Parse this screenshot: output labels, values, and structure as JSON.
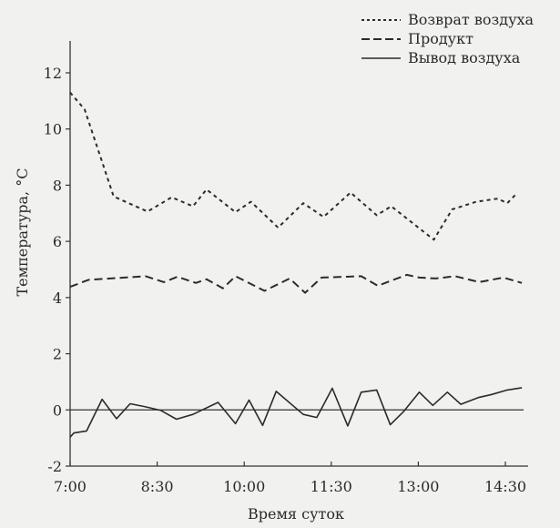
{
  "chart_data": {
    "type": "line",
    "title": "",
    "xlabel": "Время суток",
    "ylabel": "Температура, °C",
    "x_unit": "minutes since 7:00",
    "xlim": [
      0,
      467
    ],
    "ylim": [
      -2,
      12
    ],
    "y_ticks": [
      -2,
      0,
      2,
      4,
      6,
      8,
      10,
      12
    ],
    "x_ticks": [
      {
        "minutes": 0,
        "label": "7:00"
      },
      {
        "minutes": 90,
        "label": "8:30"
      },
      {
        "minutes": 180,
        "label": "10:00"
      },
      {
        "minutes": 270,
        "label": "11:30"
      },
      {
        "minutes": 360,
        "label": "13:00"
      },
      {
        "minutes": 450,
        "label": "14:30"
      }
    ],
    "grid": false,
    "zero_line": true,
    "legend_position": "top-right",
    "series": [
      {
        "name": "Возврат воздуха",
        "style": "dotted",
        "x": [
          0,
          15,
          45,
          80,
          105,
          127,
          141,
          171,
          187,
          215,
          241,
          262,
          290,
          317,
          332,
          376,
          395,
          420,
          442,
          452,
          461
        ],
        "y": [
          11.3,
          10.7,
          7.6,
          7.06,
          7.57,
          7.25,
          7.85,
          7.04,
          7.41,
          6.49,
          7.36,
          6.87,
          7.74,
          6.93,
          7.25,
          6.06,
          7.14,
          7.41,
          7.52,
          7.36,
          7.68
        ]
      },
      {
        "name": "Продукт",
        "style": "dashed",
        "x": [
          0,
          19,
          78,
          97,
          111,
          130,
          141,
          158,
          171,
          201,
          227,
          243,
          260,
          301,
          318,
          348,
          361,
          378,
          398,
          423,
          448,
          467
        ],
        "y": [
          4.38,
          4.63,
          4.76,
          4.55,
          4.74,
          4.52,
          4.65,
          4.33,
          4.76,
          4.24,
          4.68,
          4.17,
          4.71,
          4.76,
          4.42,
          4.81,
          4.71,
          4.68,
          4.76,
          4.55,
          4.71,
          4.52
        ]
      },
      {
        "name": "Вывод воздуха",
        "style": "solid",
        "x": [
          0,
          4,
          17,
          33,
          48,
          62,
          78,
          94,
          110,
          127,
          153,
          171,
          185,
          199,
          213,
          241,
          255,
          271,
          287,
          301,
          317,
          331,
          345,
          361,
          375,
          390,
          404,
          422,
          436,
          452,
          467
        ],
        "y": [
          -0.97,
          -0.82,
          -0.75,
          0.38,
          -0.31,
          0.22,
          0.11,
          -0.02,
          -0.33,
          -0.16,
          0.27,
          -0.49,
          0.35,
          -0.55,
          0.66,
          -0.16,
          -0.27,
          0.77,
          -0.57,
          0.63,
          0.71,
          -0.53,
          -0.05,
          0.63,
          0.16,
          0.63,
          0.2,
          0.44,
          0.55,
          0.71,
          0.79
        ]
      }
    ]
  }
}
